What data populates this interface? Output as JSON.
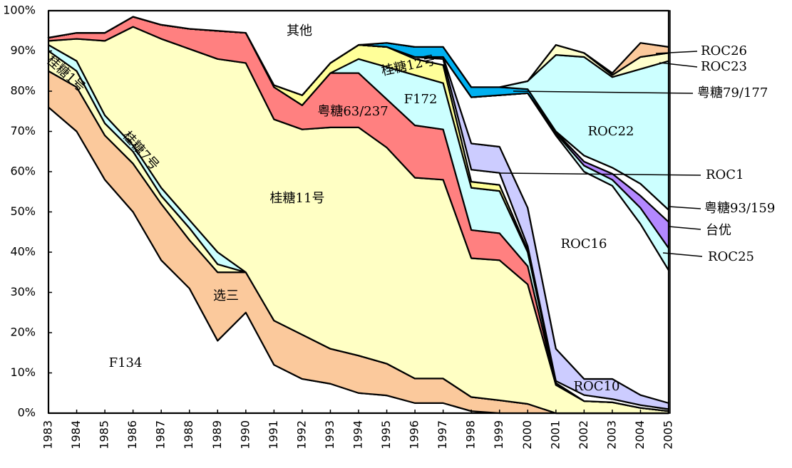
{
  "chart_data": {
    "type": "stacked-area",
    "x": [
      1983,
      1984,
      1985,
      1986,
      1987,
      1988,
      1989,
      1990,
      1991,
      1992,
      1993,
      1994,
      1995,
      1996,
      1997,
      1998,
      1999,
      2000,
      2001,
      2002,
      2003,
      2004,
      2005
    ],
    "xlim": [
      1983,
      2005
    ],
    "ylim": [
      0,
      100
    ],
    "yticks": [
      {
        "value": 0,
        "label": "0%"
      },
      {
        "value": 10,
        "label": "10%"
      },
      {
        "value": 20,
        "label": "20%"
      },
      {
        "value": 30,
        "label": "30%"
      },
      {
        "value": 40,
        "label": "40%"
      },
      {
        "value": 50,
        "label": "50%"
      },
      {
        "value": 60,
        "label": "60%"
      },
      {
        "value": 70,
        "label": "70%"
      },
      {
        "value": 80,
        "label": "80%"
      },
      {
        "value": 90,
        "label": "90%"
      },
      {
        "value": 100,
        "label": "100%"
      }
    ],
    "series": [
      {
        "name": "F134",
        "color": "#ffffff",
        "values": [
          76,
          70,
          58,
          50,
          38,
          31,
          18,
          25,
          12,
          8.5,
          7.3,
          5,
          4.4,
          2.5,
          2.5,
          0.5,
          0,
          0,
          0,
          0,
          0,
          0,
          0
        ]
      },
      {
        "name": "选三",
        "color": "#fbc99c",
        "values": [
          9,
          11,
          11,
          12,
          14,
          12,
          17,
          10,
          11,
          11,
          8.7,
          9.3,
          7.9,
          6.1,
          6.1,
          3.5,
          3.2,
          2.3,
          0,
          0,
          0,
          0,
          0
        ]
      },
      {
        "name": "桂糖1号",
        "color": "#ffffc4",
        "values": [
          5,
          4,
          3,
          3,
          2,
          3,
          2,
          0,
          0,
          0,
          0,
          0,
          0,
          0,
          0,
          0,
          0,
          0,
          0,
          0,
          0,
          0,
          0
        ]
      },
      {
        "name": "桂糖7号",
        "color": "#ccffff",
        "values": [
          1.5,
          2.5,
          2,
          1.5,
          2,
          2,
          3,
          0,
          0,
          0,
          0,
          0,
          0,
          0,
          0,
          0,
          0,
          0,
          0,
          0,
          0,
          0,
          0
        ]
      },
      {
        "name": "桂糖11号",
        "color": "#ffffc4",
        "values": [
          1,
          5.5,
          18.5,
          29.5,
          37,
          42.5,
          48,
          52,
          50,
          51,
          55,
          56.7,
          53.7,
          49.9,
          49.4,
          34.5,
          34.8,
          29.7,
          7,
          3,
          2.7,
          1.3,
          0.5
        ]
      },
      {
        "name": "粤糖63/237",
        "color": "#ff8080",
        "values": [
          0.8,
          1.5,
          2,
          2.5,
          3.5,
          5,
          7,
          7.5,
          8,
          6,
          13.5,
          13.5,
          12,
          13,
          12.5,
          7,
          6.7,
          4.5,
          0,
          0,
          0,
          0,
          0
        ]
      },
      {
        "name": "F172",
        "color": "#ccffff",
        "values": [
          0,
          0,
          0,
          0,
          0,
          0,
          0,
          0,
          0,
          0,
          0,
          3.5,
          8,
          12.5,
          11.5,
          10.5,
          10.5,
          3.5,
          0.5,
          0,
          0,
          0,
          0
        ]
      },
      {
        "name": "桂糖12号",
        "color": "#ffff99",
        "values": [
          0,
          0,
          0,
          0,
          0,
          0,
          0,
          0,
          0.5,
          2.5,
          2.5,
          3.5,
          5,
          4,
          4.5,
          1.5,
          1.5,
          0.5,
          0,
          0,
          0,
          0,
          0
        ]
      },
      {
        "name": "ROC1",
        "color": "#ffffff",
        "values": [
          0,
          0,
          0,
          0,
          0,
          0,
          0,
          0,
          0,
          0,
          0,
          0,
          0,
          0.5,
          1.5,
          3,
          3,
          1,
          0.5,
          1.5,
          0.8,
          0.7,
          0.5
        ]
      },
      {
        "name": "ROC10",
        "color": "#ccccff",
        "values": [
          0,
          0,
          0,
          0,
          0,
          0,
          0,
          0,
          0,
          0,
          0,
          0,
          0,
          0,
          0.5,
          6.5,
          6.5,
          9.5,
          8,
          4,
          5,
          2.5,
          1.5
        ]
      },
      {
        "name": "ROC16",
        "color": "#ffffff",
        "values": [
          0,
          0,
          0,
          0,
          0,
          0,
          0,
          0,
          0,
          0,
          0,
          0,
          0,
          0,
          0,
          11.5,
          12.8,
          28.5,
          53,
          51.5,
          48,
          42.5,
          33
        ]
      },
      {
        "name": "ROC25",
        "color": "#ccffff",
        "values": [
          0,
          0,
          0,
          0,
          0,
          0,
          0,
          0,
          0,
          0,
          0,
          0,
          0,
          0,
          0,
          0,
          0,
          0,
          0.5,
          1.5,
          1.5,
          4,
          5.5
        ]
      },
      {
        "name": "台优",
        "color": "#b388ff",
        "values": [
          0,
          0,
          0,
          0,
          0,
          0,
          0,
          0,
          0,
          0,
          0,
          0,
          0,
          0,
          0,
          0,
          0,
          0,
          0.3,
          1,
          1.5,
          3,
          6.5
        ]
      },
      {
        "name": "粤糖93/159",
        "color": "#ffffff",
        "values": [
          0,
          0,
          0,
          0,
          0,
          0,
          0,
          0,
          0,
          0,
          0,
          0,
          0,
          0,
          0,
          0,
          0,
          0,
          0.2,
          1.5,
          1.5,
          3,
          3
        ]
      },
      {
        "name": "粤糖79/177",
        "color": "#00b0f0",
        "values": [
          0,
          0,
          0,
          0,
          0,
          0,
          0,
          0,
          0,
          0,
          0,
          0,
          1,
          2.5,
          2.5,
          2.5,
          2,
          1,
          0,
          0,
          0,
          0,
          0
        ]
      },
      {
        "name": "ROC22",
        "color": "#ccffff",
        "values": [
          0,
          0,
          0,
          0,
          0,
          0,
          0,
          0,
          0,
          0,
          0,
          0,
          0,
          0,
          0,
          0,
          0,
          2,
          19,
          24.5,
          22.5,
          28.5,
          37
        ]
      },
      {
        "name": "ROC23",
        "color": "#ffffcc",
        "values": [
          0,
          0,
          0,
          0,
          0,
          0,
          0,
          0,
          0,
          0,
          0,
          0,
          0,
          0,
          0,
          0,
          0,
          0,
          2.5,
          1,
          0.5,
          3,
          2
        ]
      },
      {
        "name": "ROC26",
        "color": "#fbc99c",
        "values": [
          0,
          0,
          0,
          0,
          0,
          0,
          0,
          0,
          0,
          0,
          0,
          0,
          0,
          0,
          0,
          0,
          0,
          0,
          0,
          0,
          0.5,
          3.5,
          1.5
        ]
      },
      {
        "name": "其他",
        "color": "#ffffff",
        "values": [
          6.7,
          5.5,
          5.5,
          1.5,
          3.5,
          4.5,
          5,
          5.5,
          18.5,
          21,
          13,
          8.5,
          8,
          9,
          9,
          19,
          19,
          17.5,
          8.5,
          10.5,
          15.5,
          8,
          9
        ]
      }
    ]
  }
}
